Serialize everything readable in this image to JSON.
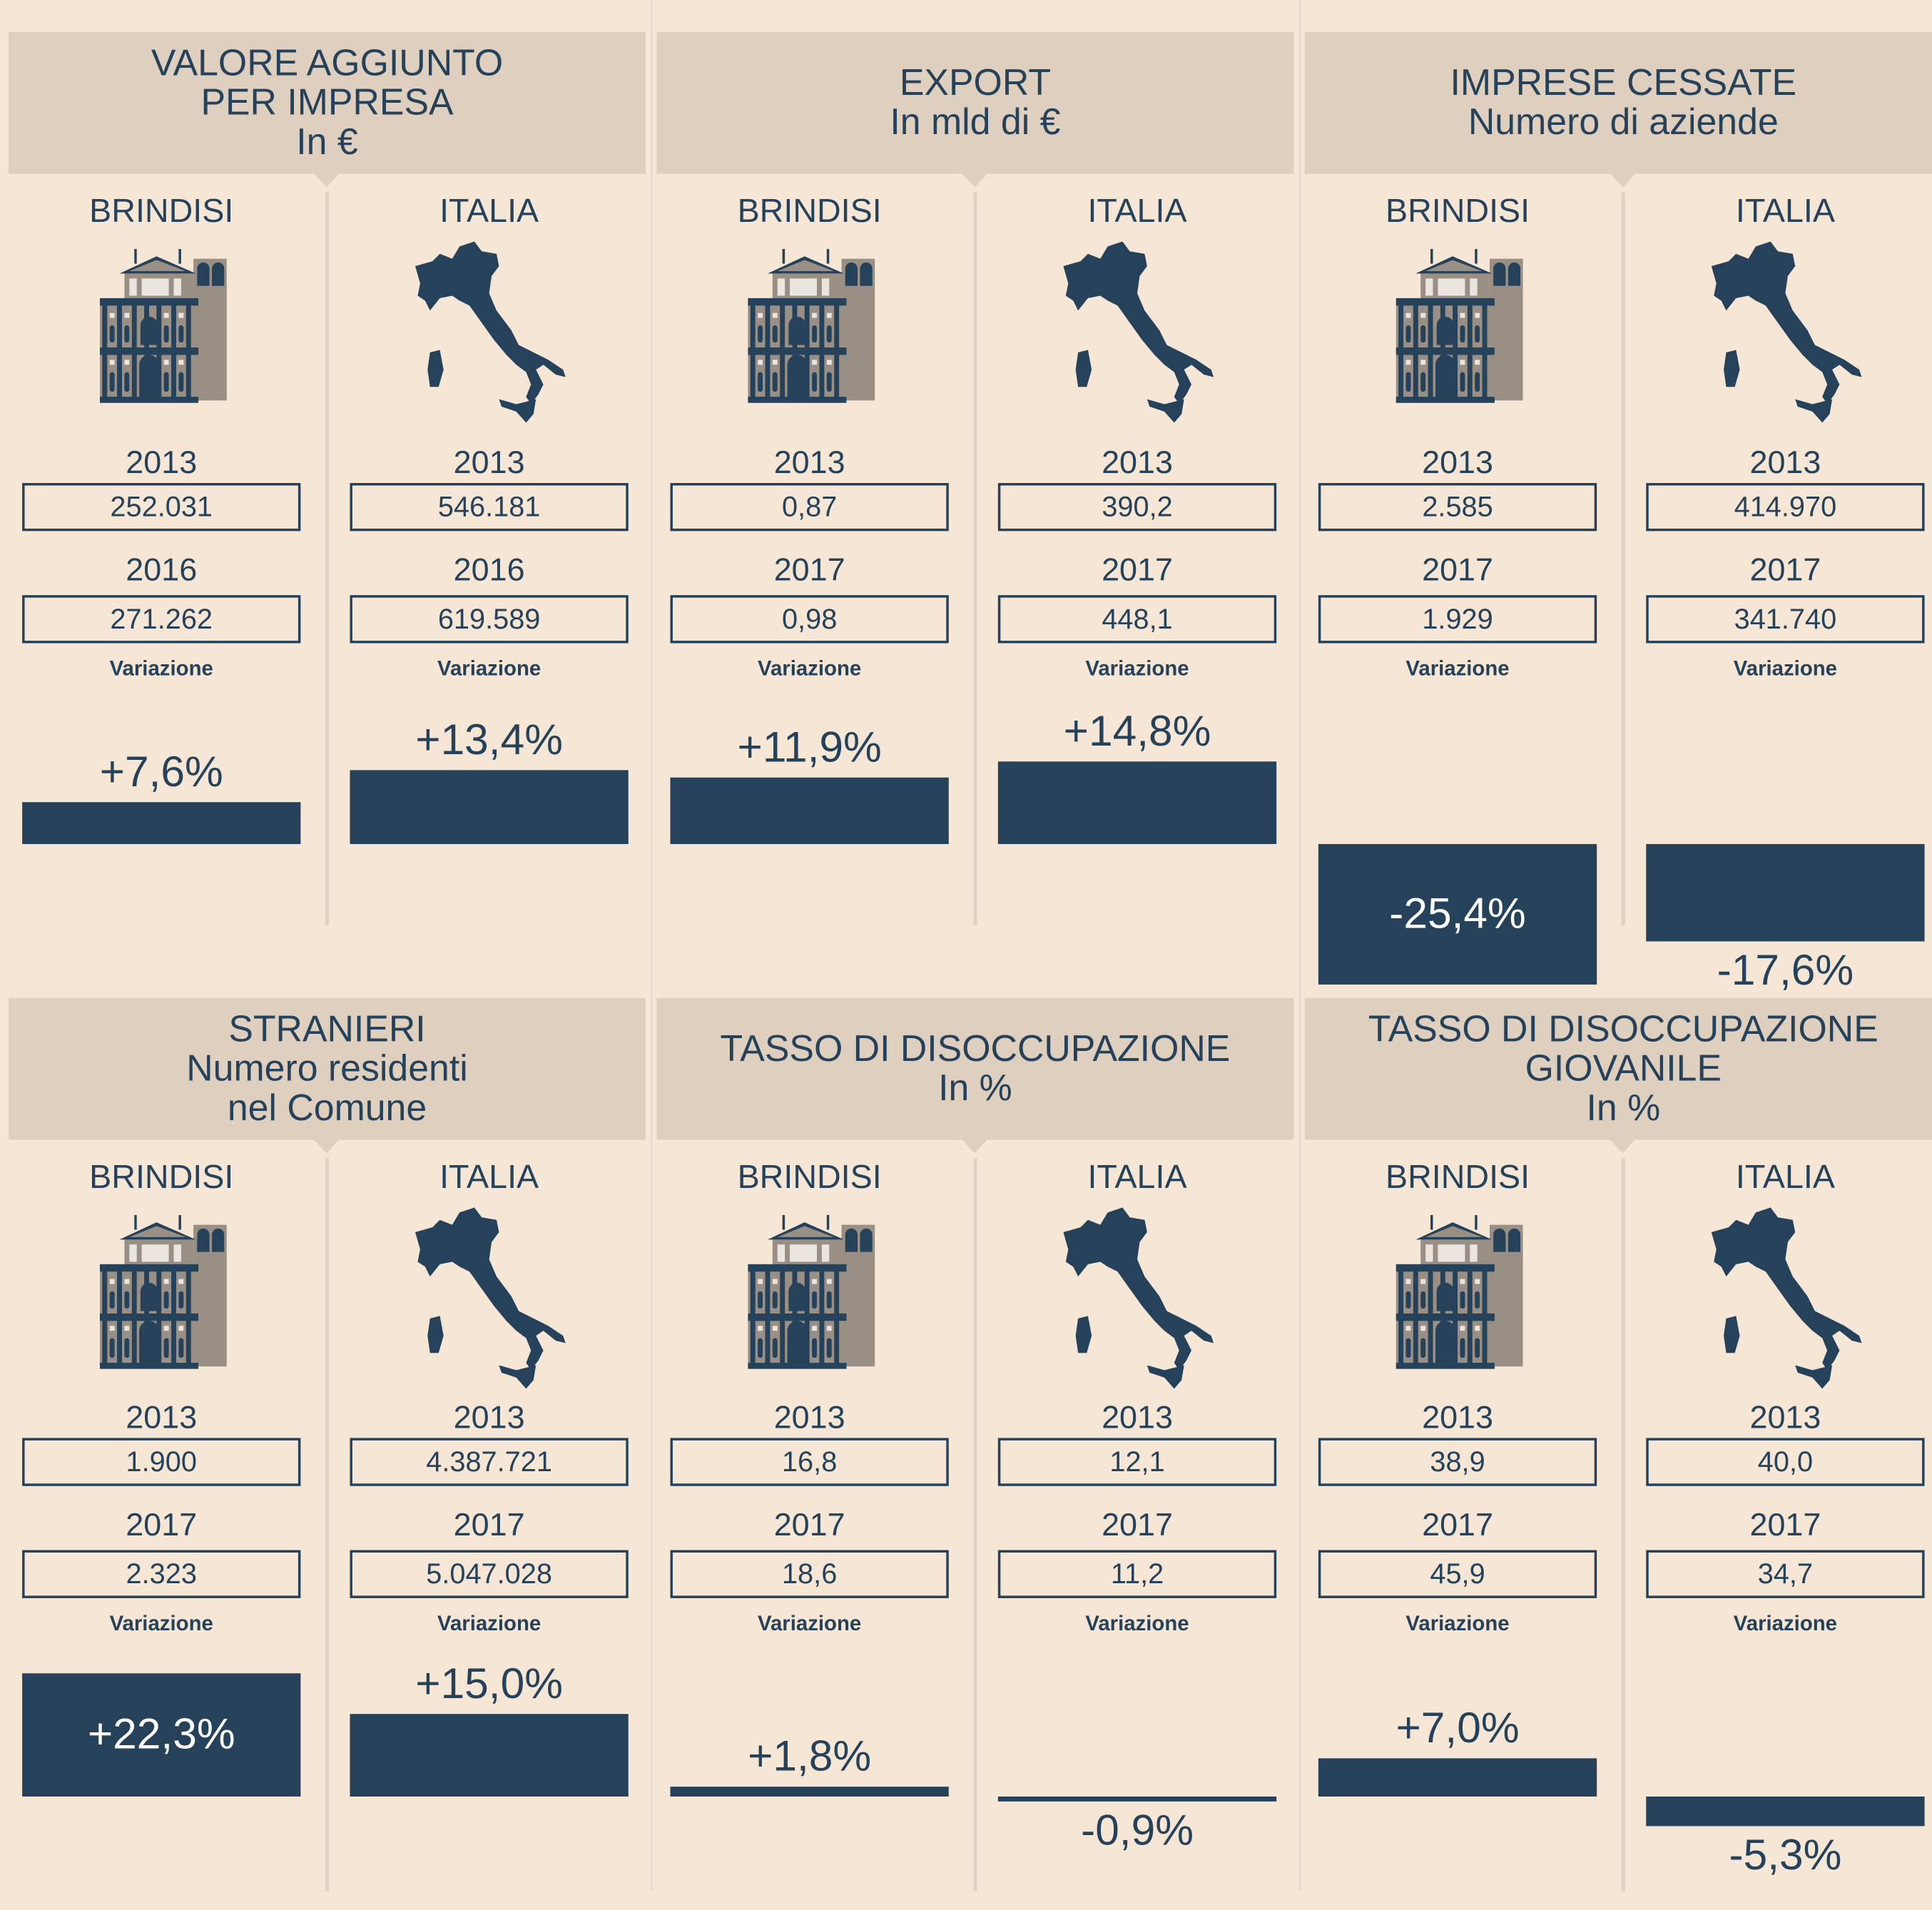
{
  "colors": {
    "background": "#f5e6d6",
    "header": "#dfcfbf",
    "accent": "#25425a",
    "building_tan": "#9a8f85",
    "divider": "#e0d3c6"
  },
  "icons": {
    "brindisi": "building-icon",
    "italia": "italy-map-icon"
  },
  "chart_data": [
    {
      "type": "bar",
      "title_lines": [
        "VALORE AGGIUNTO",
        "PER IMPRESA",
        "In €"
      ],
      "columns": [
        {
          "label": "BRINDISI",
          "year1": "2013",
          "value1": "252.031",
          "year2": "2016",
          "value2": "271.262",
          "variation_label": "Variazione",
          "variation": "+7,6%",
          "variation_pct": 7.6
        },
        {
          "label": "ITALIA",
          "year1": "2013",
          "value1": "546.181",
          "year2": "2016",
          "value2": "619.589",
          "variation_label": "Variazione",
          "variation": "+13,4%",
          "variation_pct": 13.4
        }
      ]
    },
    {
      "type": "bar",
      "title_lines": [
        "EXPORT",
        "In mld di €"
      ],
      "columns": [
        {
          "label": "BRINDISI",
          "year1": "2013",
          "value1": "0,87",
          "year2": "2017",
          "value2": "0,98",
          "variation_label": "Variazione",
          "variation": "+11,9%",
          "variation_pct": 11.9
        },
        {
          "label": "ITALIA",
          "year1": "2013",
          "value1": "390,2",
          "year2": "2017",
          "value2": "448,1",
          "variation_label": "Variazione",
          "variation": "+14,8%",
          "variation_pct": 14.8
        }
      ]
    },
    {
      "type": "bar",
      "title_lines": [
        "IMPRESE CESSATE",
        "Numero di aziende"
      ],
      "columns": [
        {
          "label": "BRINDISI",
          "year1": "2013",
          "value1": "2.585",
          "year2": "2017",
          "value2": "1.929",
          "variation_label": "Variazione",
          "variation": "-25,4%",
          "variation_pct": -25.4
        },
        {
          "label": "ITALIA",
          "year1": "2013",
          "value1": "414.970",
          "year2": "2017",
          "value2": "341.740",
          "variation_label": "Variazione",
          "variation": "-17,6%",
          "variation_pct": -17.6
        }
      ]
    },
    {
      "type": "bar",
      "title_lines": [
        "STRANIERI",
        "Numero residenti",
        "nel Comune"
      ],
      "columns": [
        {
          "label": "BRINDISI",
          "year1": "2013",
          "value1": "1.900",
          "year2": "2017",
          "value2": "2.323",
          "variation_label": "Variazione",
          "variation": "+22,3%",
          "variation_pct": 22.3
        },
        {
          "label": "ITALIA",
          "year1": "2013",
          "value1": "4.387.721",
          "year2": "2017",
          "value2": "5.047.028",
          "variation_label": "Variazione",
          "variation": "+15,0%",
          "variation_pct": 15.0
        }
      ]
    },
    {
      "type": "bar",
      "title_lines": [
        "TASSO DI DISOCCUPAZIONE",
        "In %"
      ],
      "columns": [
        {
          "label": "BRINDISI",
          "year1": "2013",
          "value1": "16,8",
          "year2": "2017",
          "value2": "18,6",
          "variation_label": "Variazione",
          "variation": "+1,8%",
          "variation_pct": 1.8
        },
        {
          "label": "ITALIA",
          "year1": "2013",
          "value1": "12,1",
          "year2": "2017",
          "value2": "11,2",
          "variation_label": "Variazione",
          "variation": "-0,9%",
          "variation_pct": -0.9
        }
      ]
    },
    {
      "type": "bar",
      "title_lines": [
        "TASSO DI DISOCCUPAZIONE",
        "GIOVANILE",
        "In %"
      ],
      "columns": [
        {
          "label": "BRINDISI",
          "year1": "2013",
          "value1": "38,9",
          "year2": "2017",
          "value2": "45,9",
          "variation_label": "Variazione",
          "variation": "+7,0%",
          "variation_pct": 7.0
        },
        {
          "label": "ITALIA",
          "year1": "2013",
          "value1": "40,0",
          "year2": "2017",
          "value2": "34,7",
          "variation_label": "Variazione",
          "variation": "-5,3%",
          "variation_pct": -5.3
        }
      ]
    }
  ]
}
